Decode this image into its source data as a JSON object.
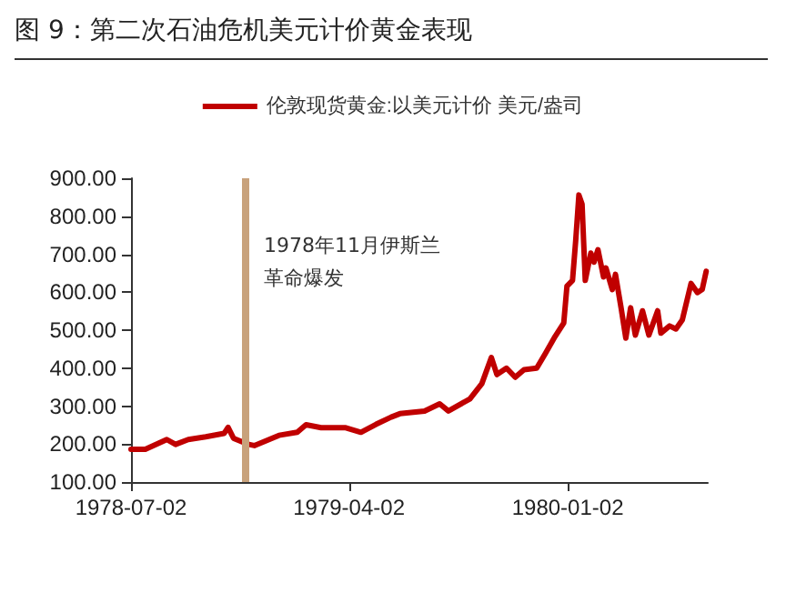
{
  "chart_data": {
    "type": "line",
    "title": "图 9：第二次石油危机美元计价黄金表现",
    "x": [
      "1978-07-02",
      "1978-07-20",
      "1978-08-16",
      "1978-08-27",
      "1978-09-12",
      "1978-10-04",
      "1978-10-27",
      "1978-11-01",
      "1978-11-08",
      "1978-11-27",
      "1978-12-04",
      "1979-01-04",
      "1979-01-27",
      "1979-02-07",
      "1979-02-26",
      "1979-03-29",
      "1979-04-17",
      "1979-05-06",
      "1979-05-25",
      "1979-06-05",
      "1979-07-06",
      "1979-07-25",
      "1979-08-05",
      "1979-09-01",
      "1979-09-16",
      "1979-09-28",
      "1979-10-05",
      "1979-10-17",
      "1979-10-28",
      "1979-11-08",
      "1979-11-24",
      "1979-12-05",
      "1979-12-17",
      "1979-12-28",
      "1980-01-01",
      "1980-01-08",
      "1980-01-12",
      "1980-01-16",
      "1980-01-20",
      "1980-01-24",
      "1980-01-31",
      "1980-02-04",
      "1980-02-09",
      "1980-02-16",
      "1980-02-19",
      "1980-02-27",
      "1980-03-02",
      "1980-03-09",
      "1980-03-15",
      "1980-03-21",
      "1980-03-27",
      "1980-04-05",
      "1980-04-13",
      "1980-04-24",
      "1980-04-28",
      "1980-05-09",
      "1980-05-17",
      "1980-05-25",
      "1980-06-05",
      "1980-06-13",
      "1980-06-19",
      "1980-06-24"
    ],
    "series": [
      {
        "name": "伦敦现货黄金:以美元计价 美元/盎司",
        "color": "#c00000",
        "values": [
          186,
          186,
          212,
          199,
          212,
          219,
          228,
          244,
          215,
          199,
          196,
          223,
          231,
          251,
          243,
          243,
          231,
          252,
          271,
          280,
          287,
          306,
          287,
          319,
          359,
          428,
          383,
          400,
          376,
          396,
          400,
          439,
          483,
          519,
          616,
          631,
          736,
          856,
          832,
          631,
          703,
          679,
          712,
          640,
          664,
          607,
          647,
          559,
          479,
          559,
          487,
          551,
          487,
          551,
          492,
          511,
          503,
          527,
          623,
          599,
          607,
          655
        ]
      }
    ],
    "xlim": [
      "1978-07-02",
      "1980-06-26"
    ],
    "xticks": [
      {
        "value": "1978-07-02",
        "label": "1978-07-02"
      },
      {
        "value": "1979-04-02",
        "label": "1979-04-02"
      },
      {
        "value": "1980-01-02",
        "label": "1980-01-02"
      }
    ],
    "ylim": [
      100,
      900
    ],
    "yticks": [
      {
        "value": 100,
        "label": "100.00"
      },
      {
        "value": 200,
        "label": "200.00"
      },
      {
        "value": 300,
        "label": "300.00"
      },
      {
        "value": 400,
        "label": "400.00"
      },
      {
        "value": 500,
        "label": "500.00"
      },
      {
        "value": 600,
        "label": "600.00"
      },
      {
        "value": 700,
        "label": "700.00"
      },
      {
        "value": 800,
        "label": "800.00"
      },
      {
        "value": 900,
        "label": "900.00"
      }
    ],
    "ref_lines": [
      {
        "axis": "x",
        "value": "1978-11-23",
        "label": "1978年11月伊斯兰革命爆发",
        "color": "#c8a27c"
      }
    ],
    "grid": false,
    "legend": "top",
    "marker": "none",
    "line_style": "solid"
  }
}
